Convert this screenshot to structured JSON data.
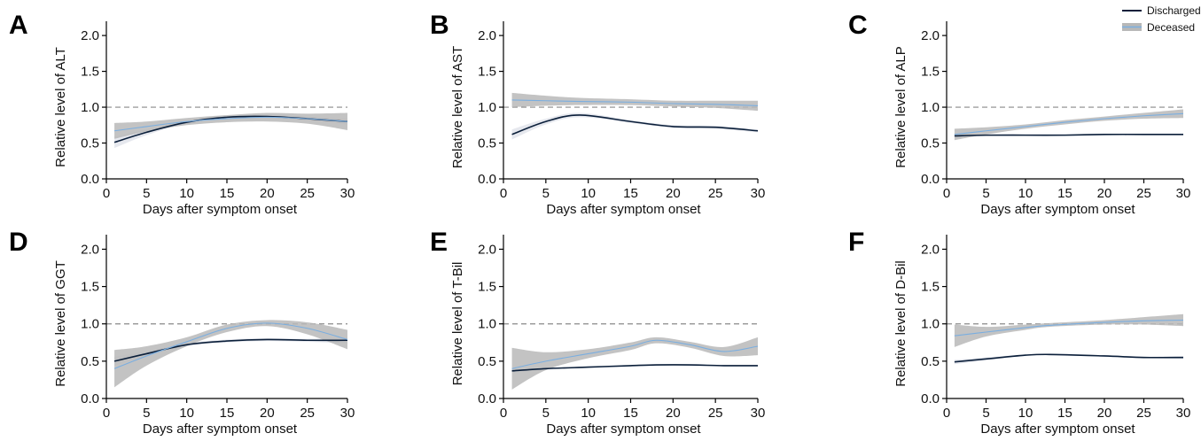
{
  "legend": {
    "items": [
      {
        "label": "Discharged",
        "color": "#0b1f3a"
      },
      {
        "label": "Deceased",
        "color": "#7aaee0",
        "band": "#b8b8b8"
      }
    ]
  },
  "colors": {
    "discharged_line": "#0b1f3a",
    "discharged_band": "#e3e6ec",
    "deceased_line": "#7aaee0",
    "deceased_band": "#b8b8b8",
    "reference_line": "#8a8a8a"
  },
  "chart_data": [
    {
      "panel": "A",
      "type": "line",
      "xlabel": "Days after symptom onset",
      "ylabel": "Relative level of ALT",
      "xlim": [
        0,
        30
      ],
      "ylim": [
        0,
        2.1
      ],
      "xticks": [
        "0",
        "5",
        "10",
        "15",
        "20",
        "25",
        "30"
      ],
      "yticks": [
        "0.0",
        "0.5",
        "1.0",
        "1.5",
        "2.0"
      ],
      "reference_y": 1.0,
      "x": [
        1,
        5,
        10,
        15,
        20,
        25,
        30
      ],
      "series": [
        {
          "name": "Discharged",
          "values": [
            0.51,
            0.65,
            0.79,
            0.86,
            0.87,
            0.84,
            0.8
          ],
          "lower": [
            0.43,
            0.61,
            0.77,
            0.84,
            0.85,
            0.81,
            0.76
          ],
          "upper": [
            0.59,
            0.69,
            0.81,
            0.88,
            0.89,
            0.87,
            0.84
          ]
        },
        {
          "name": "Deceased",
          "values": [
            0.67,
            0.73,
            0.8,
            0.84,
            0.86,
            0.84,
            0.8
          ],
          "lower": [
            0.56,
            0.66,
            0.75,
            0.79,
            0.8,
            0.77,
            0.68
          ],
          "upper": [
            0.78,
            0.8,
            0.85,
            0.89,
            0.92,
            0.91,
            0.92
          ]
        }
      ]
    },
    {
      "panel": "B",
      "type": "line",
      "xlabel": "Days after symptom onset",
      "ylabel": "Relative level of AST",
      "xlim": [
        0,
        30
      ],
      "ylim": [
        0,
        2.1
      ],
      "xticks": [
        "0",
        "5",
        "10",
        "15",
        "20",
        "25",
        "30"
      ],
      "yticks": [
        "0.0",
        "0.5",
        "1.0",
        "1.5",
        "2.0"
      ],
      "reference_y": 1.0,
      "x": [
        1,
        5,
        9,
        15,
        20,
        25,
        30
      ],
      "series": [
        {
          "name": "Discharged",
          "values": [
            0.62,
            0.8,
            0.89,
            0.8,
            0.73,
            0.72,
            0.67
          ],
          "lower": [
            0.55,
            0.76,
            0.86,
            0.78,
            0.71,
            0.7,
            0.65
          ],
          "upper": [
            0.69,
            0.84,
            0.92,
            0.82,
            0.75,
            0.74,
            0.69
          ]
        },
        {
          "name": "Deceased",
          "values": [
            1.1,
            1.09,
            1.08,
            1.07,
            1.05,
            1.04,
            1.02
          ],
          "lower": [
            1.0,
            1.02,
            1.03,
            1.03,
            1.01,
            0.99,
            0.95
          ],
          "upper": [
            1.2,
            1.16,
            1.13,
            1.11,
            1.09,
            1.09,
            1.09
          ]
        }
      ]
    },
    {
      "panel": "C",
      "type": "line",
      "xlabel": "Days after symptom onset",
      "ylabel": "Relative level of ALP",
      "xlim": [
        0,
        30
      ],
      "ylim": [
        0,
        2.1
      ],
      "xticks": [
        "0",
        "5",
        "10",
        "15",
        "20",
        "25",
        "30"
      ],
      "yticks": [
        "0.0",
        "0.5",
        "1.0",
        "1.5",
        "2.0"
      ],
      "reference_y": 1.0,
      "x": [
        1,
        5,
        10,
        15,
        20,
        25,
        30
      ],
      "series": [
        {
          "name": "Discharged",
          "values": [
            0.6,
            0.61,
            0.61,
            0.61,
            0.62,
            0.62,
            0.62
          ],
          "lower": [
            0.58,
            0.6,
            0.6,
            0.6,
            0.61,
            0.61,
            0.61
          ],
          "upper": [
            0.62,
            0.62,
            0.62,
            0.62,
            0.63,
            0.63,
            0.63
          ]
        },
        {
          "name": "Deceased",
          "values": [
            0.62,
            0.67,
            0.73,
            0.79,
            0.84,
            0.88,
            0.91
          ],
          "lower": [
            0.54,
            0.62,
            0.7,
            0.76,
            0.81,
            0.84,
            0.85
          ],
          "upper": [
            0.7,
            0.72,
            0.76,
            0.82,
            0.87,
            0.92,
            0.97
          ]
        }
      ]
    },
    {
      "panel": "D",
      "type": "line",
      "xlabel": "Days after symptom onset",
      "ylabel": "Relative level of GGT",
      "xlim": [
        0,
        30
      ],
      "ylim": [
        0,
        2.1
      ],
      "xticks": [
        "0",
        "5",
        "10",
        "15",
        "20",
        "25",
        "30"
      ],
      "yticks": [
        "0.0",
        "0.5",
        "1.0",
        "1.5",
        "2.0"
      ],
      "reference_y": 1.0,
      "x": [
        1,
        5,
        10,
        15,
        20,
        25,
        30
      ],
      "series": [
        {
          "name": "Discharged",
          "values": [
            0.5,
            0.6,
            0.72,
            0.77,
            0.79,
            0.78,
            0.78
          ],
          "lower": [
            0.44,
            0.57,
            0.7,
            0.75,
            0.77,
            0.76,
            0.74
          ],
          "upper": [
            0.56,
            0.63,
            0.74,
            0.79,
            0.81,
            0.8,
            0.82
          ]
        },
        {
          "name": "Deceased",
          "values": [
            0.4,
            0.57,
            0.76,
            0.94,
            1.01,
            0.94,
            0.79
          ],
          "lower": [
            0.15,
            0.44,
            0.7,
            0.89,
            0.97,
            0.86,
            0.66
          ],
          "upper": [
            0.65,
            0.7,
            0.82,
            0.99,
            1.05,
            1.02,
            0.92
          ]
        }
      ]
    },
    {
      "panel": "E",
      "type": "line",
      "xlabel": "Days after symptom onset",
      "ylabel": "Relative level of T-Bil",
      "xlim": [
        0,
        30
      ],
      "ylim": [
        0,
        2.1
      ],
      "xticks": [
        "0",
        "5",
        "10",
        "15",
        "20",
        "25",
        "30"
      ],
      "yticks": [
        "0.0",
        "0.5",
        "1.0",
        "1.5",
        "2.0"
      ],
      "reference_y": 1.0,
      "x": [
        1,
        5,
        10,
        15,
        18,
        22,
        26,
        30
      ],
      "series": [
        {
          "name": "Discharged",
          "values": [
            0.37,
            0.4,
            0.42,
            0.44,
            0.45,
            0.45,
            0.44,
            0.44
          ],
          "lower": [
            0.35,
            0.39,
            0.41,
            0.43,
            0.44,
            0.44,
            0.43,
            0.43
          ],
          "upper": [
            0.39,
            0.41,
            0.43,
            0.45,
            0.46,
            0.46,
            0.45,
            0.45
          ]
        },
        {
          "name": "Deceased",
          "values": [
            0.4,
            0.5,
            0.6,
            0.7,
            0.78,
            0.72,
            0.63,
            0.7
          ],
          "lower": [
            0.12,
            0.38,
            0.54,
            0.65,
            0.74,
            0.68,
            0.57,
            0.58
          ],
          "upper": [
            0.68,
            0.62,
            0.66,
            0.75,
            0.82,
            0.76,
            0.69,
            0.82
          ]
        }
      ]
    },
    {
      "panel": "F",
      "type": "line",
      "xlabel": "Days after symptom onset",
      "ylabel": "Relative level of D-Bil",
      "xlim": [
        0,
        30
      ],
      "ylim": [
        0,
        2.1
      ],
      "xticks": [
        "0",
        "5",
        "10",
        "15",
        "20",
        "25",
        "30"
      ],
      "yticks": [
        "0.0",
        "0.5",
        "1.0",
        "1.5",
        "2.0"
      ],
      "reference_y": 1.0,
      "x": [
        1,
        5,
        10,
        13,
        20,
        25,
        30
      ],
      "series": [
        {
          "name": "Discharged",
          "values": [
            0.49,
            0.53,
            0.58,
            0.59,
            0.57,
            0.55,
            0.55
          ],
          "lower": [
            0.46,
            0.51,
            0.57,
            0.58,
            0.56,
            0.54,
            0.53
          ],
          "upper": [
            0.52,
            0.55,
            0.59,
            0.6,
            0.58,
            0.56,
            0.57
          ]
        },
        {
          "name": "Deceased",
          "values": [
            0.84,
            0.89,
            0.95,
            0.98,
            1.02,
            1.04,
            1.05
          ],
          "lower": [
            0.69,
            0.83,
            0.92,
            0.96,
            0.99,
            0.99,
            0.97
          ],
          "upper": [
            0.99,
            0.96,
            0.99,
            1.01,
            1.05,
            1.09,
            1.13
          ]
        }
      ]
    }
  ]
}
